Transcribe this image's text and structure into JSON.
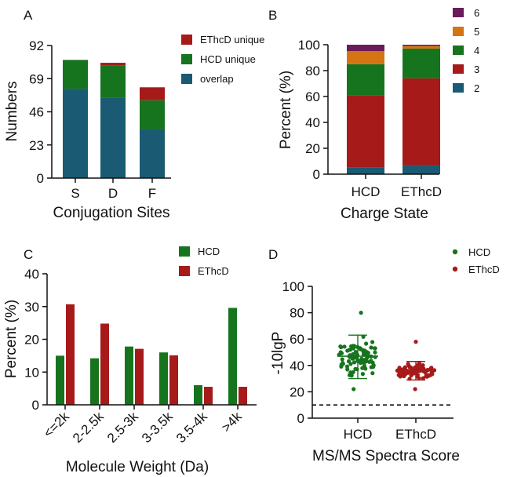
{
  "colors": {
    "overlap": "#1a5a73",
    "hcd_unique": "#17741e",
    "ethcd_unique": "#a61a1a",
    "hcd": "#17741e",
    "ethcd": "#a61a1a",
    "charge2": "#1a5a73",
    "charge3": "#a61a1a",
    "charge4": "#17741e",
    "charge5": "#d47412",
    "charge6": "#6b1a5c"
  },
  "chart_data": [
    {
      "panel": "A",
      "type": "bar",
      "stacked": true,
      "categories": [
        "S",
        "D",
        "F"
      ],
      "series": [
        {
          "name": "overlap",
          "values": [
            62,
            56,
            34
          ]
        },
        {
          "name": "HCD unique",
          "values": [
            20,
            22,
            20
          ]
        },
        {
          "name": "EThcD unique",
          "values": [
            0,
            2,
            9
          ]
        }
      ],
      "legend_order": [
        "EThcD unique",
        "HCD unique",
        "overlap"
      ],
      "yticks": [
        "0",
        "23",
        "46",
        "69",
        "92"
      ],
      "ylim": [
        0,
        92
      ],
      "xlabel": "Conjugation Sites",
      "ylabel": "Numbers",
      "legend": "top-right"
    },
    {
      "panel": "B",
      "type": "bar",
      "stacked": true,
      "categories": [
        "HCD",
        "EThcD"
      ],
      "series": [
        {
          "name": "2",
          "values": [
            5,
            7
          ]
        },
        {
          "name": "3",
          "values": [
            56,
            67
          ]
        },
        {
          "name": "4",
          "values": [
            24,
            23
          ]
        },
        {
          "name": "5",
          "values": [
            10,
            2
          ]
        },
        {
          "name": "6",
          "values": [
            5,
            1
          ]
        }
      ],
      "legend_order": [
        "6",
        "5",
        "4",
        "3",
        "2"
      ],
      "yticks": [
        "0",
        "20",
        "40",
        "60",
        "80",
        "100"
      ],
      "ylim": [
        0,
        100
      ],
      "xlabel": "Charge State",
      "ylabel": "Percent (%)",
      "legend": "right"
    },
    {
      "panel": "C",
      "type": "bar",
      "grouped": true,
      "categories": [
        "<=2k",
        "2-2.5k",
        "2.5-3k",
        "3-3.5k",
        "3.5-4k",
        ">4k"
      ],
      "series": [
        {
          "name": "HCD",
          "values": [
            15,
            14.2,
            17.8,
            16,
            6,
            29.6
          ]
        },
        {
          "name": "EThcD",
          "values": [
            30.7,
            24.8,
            17.1,
            15.1,
            5.5,
            5.5
          ]
        }
      ],
      "yticks": [
        "0",
        "10",
        "20",
        "30",
        "40"
      ],
      "ylim": [
        0,
        40
      ],
      "xlabel": "Molecule Weight (Da)",
      "ylabel": "Percent (%)",
      "legend": "top-right"
    },
    {
      "panel": "D",
      "type": "scatter",
      "categories": [
        "HCD",
        "EThcD"
      ],
      "series": [
        {
          "name": "HCD",
          "mean": 47,
          "sd_low": 30,
          "sd_high": 63,
          "min": 22,
          "max": 80
        },
        {
          "name": "EThcD",
          "mean": 36,
          "sd_low": 29,
          "sd_high": 43,
          "min": 22,
          "max": 58
        }
      ],
      "threshold": 10,
      "yticks": [
        "0",
        "20",
        "40",
        "60",
        "80",
        "100"
      ],
      "ylim": [
        0,
        100
      ],
      "xlabel": "MS/MS Spectra Score",
      "ylabel": "-10lgP",
      "legend": "top-right"
    }
  ]
}
